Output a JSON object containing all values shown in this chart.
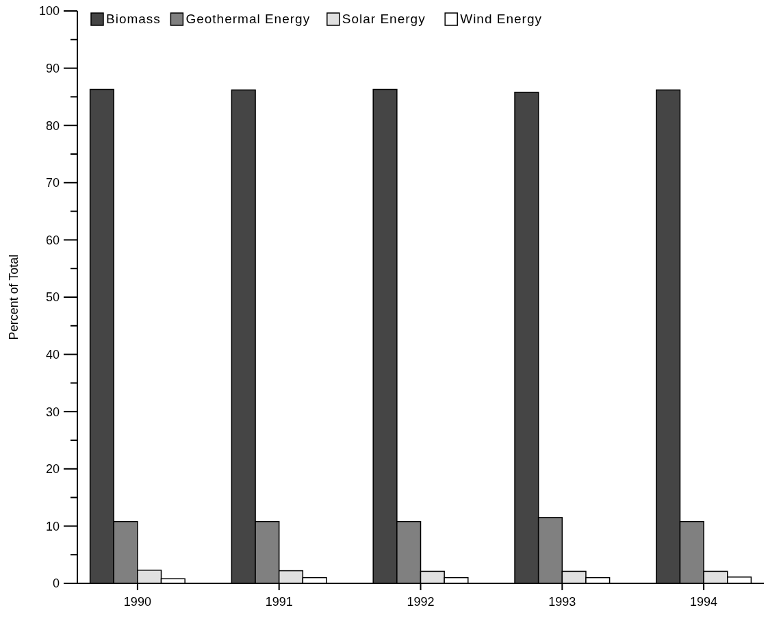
{
  "chart_data": {
    "type": "bar",
    "ylabel": "Percent of Total",
    "categories": [
      "1990",
      "1991",
      "1992",
      "1993",
      "1994"
    ],
    "series": [
      {
        "name": "Biomass",
        "color": "#454545",
        "values": [
          86.3,
          86.2,
          86.3,
          85.8,
          86.2
        ]
      },
      {
        "name": "Geothermal Energy",
        "color": "#808080",
        "values": [
          10.8,
          10.8,
          10.8,
          11.5,
          10.8
        ]
      },
      {
        "name": "Solar Energy",
        "color": "#e0e0e0",
        "values": [
          2.3,
          2.2,
          2.1,
          2.1,
          2.1
        ]
      },
      {
        "name": "Wind Energy",
        "color": "#ffffff",
        "values": [
          0.8,
          1.0,
          1.0,
          1.0,
          1.1
        ]
      }
    ],
    "ylim": [
      0,
      100
    ],
    "yticks": [
      0,
      {
        "value": 5,
        "label": null
      },
      10,
      {
        "value": 15,
        "label": null
      },
      20,
      {
        "value": 25,
        "label": null
      },
      30,
      {
        "value": 35,
        "label": null
      },
      40,
      {
        "value": 45,
        "label": null
      },
      50,
      {
        "value": 55,
        "label": null
      },
      60,
      {
        "value": 65,
        "label": null
      },
      70,
      {
        "value": 75,
        "label": null
      },
      80,
      {
        "value": 85,
        "label": null
      },
      90,
      {
        "value": 95,
        "label": null
      },
      100
    ],
    "grid": false,
    "legend": "top left"
  }
}
